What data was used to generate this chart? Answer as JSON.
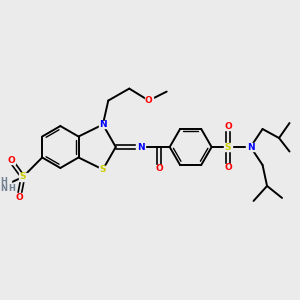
{
  "background_color": "#ebebeb",
  "bond_color": "#000000",
  "atom_colors": {
    "N": "#0000ff",
    "O": "#ff0000",
    "S": "#cccc00",
    "H": "#808080",
    "C": "#000000"
  },
  "figsize": [
    3.0,
    3.0
  ],
  "dpi": 100,
  "xlim": [
    0,
    10
  ],
  "ylim": [
    0,
    10
  ]
}
